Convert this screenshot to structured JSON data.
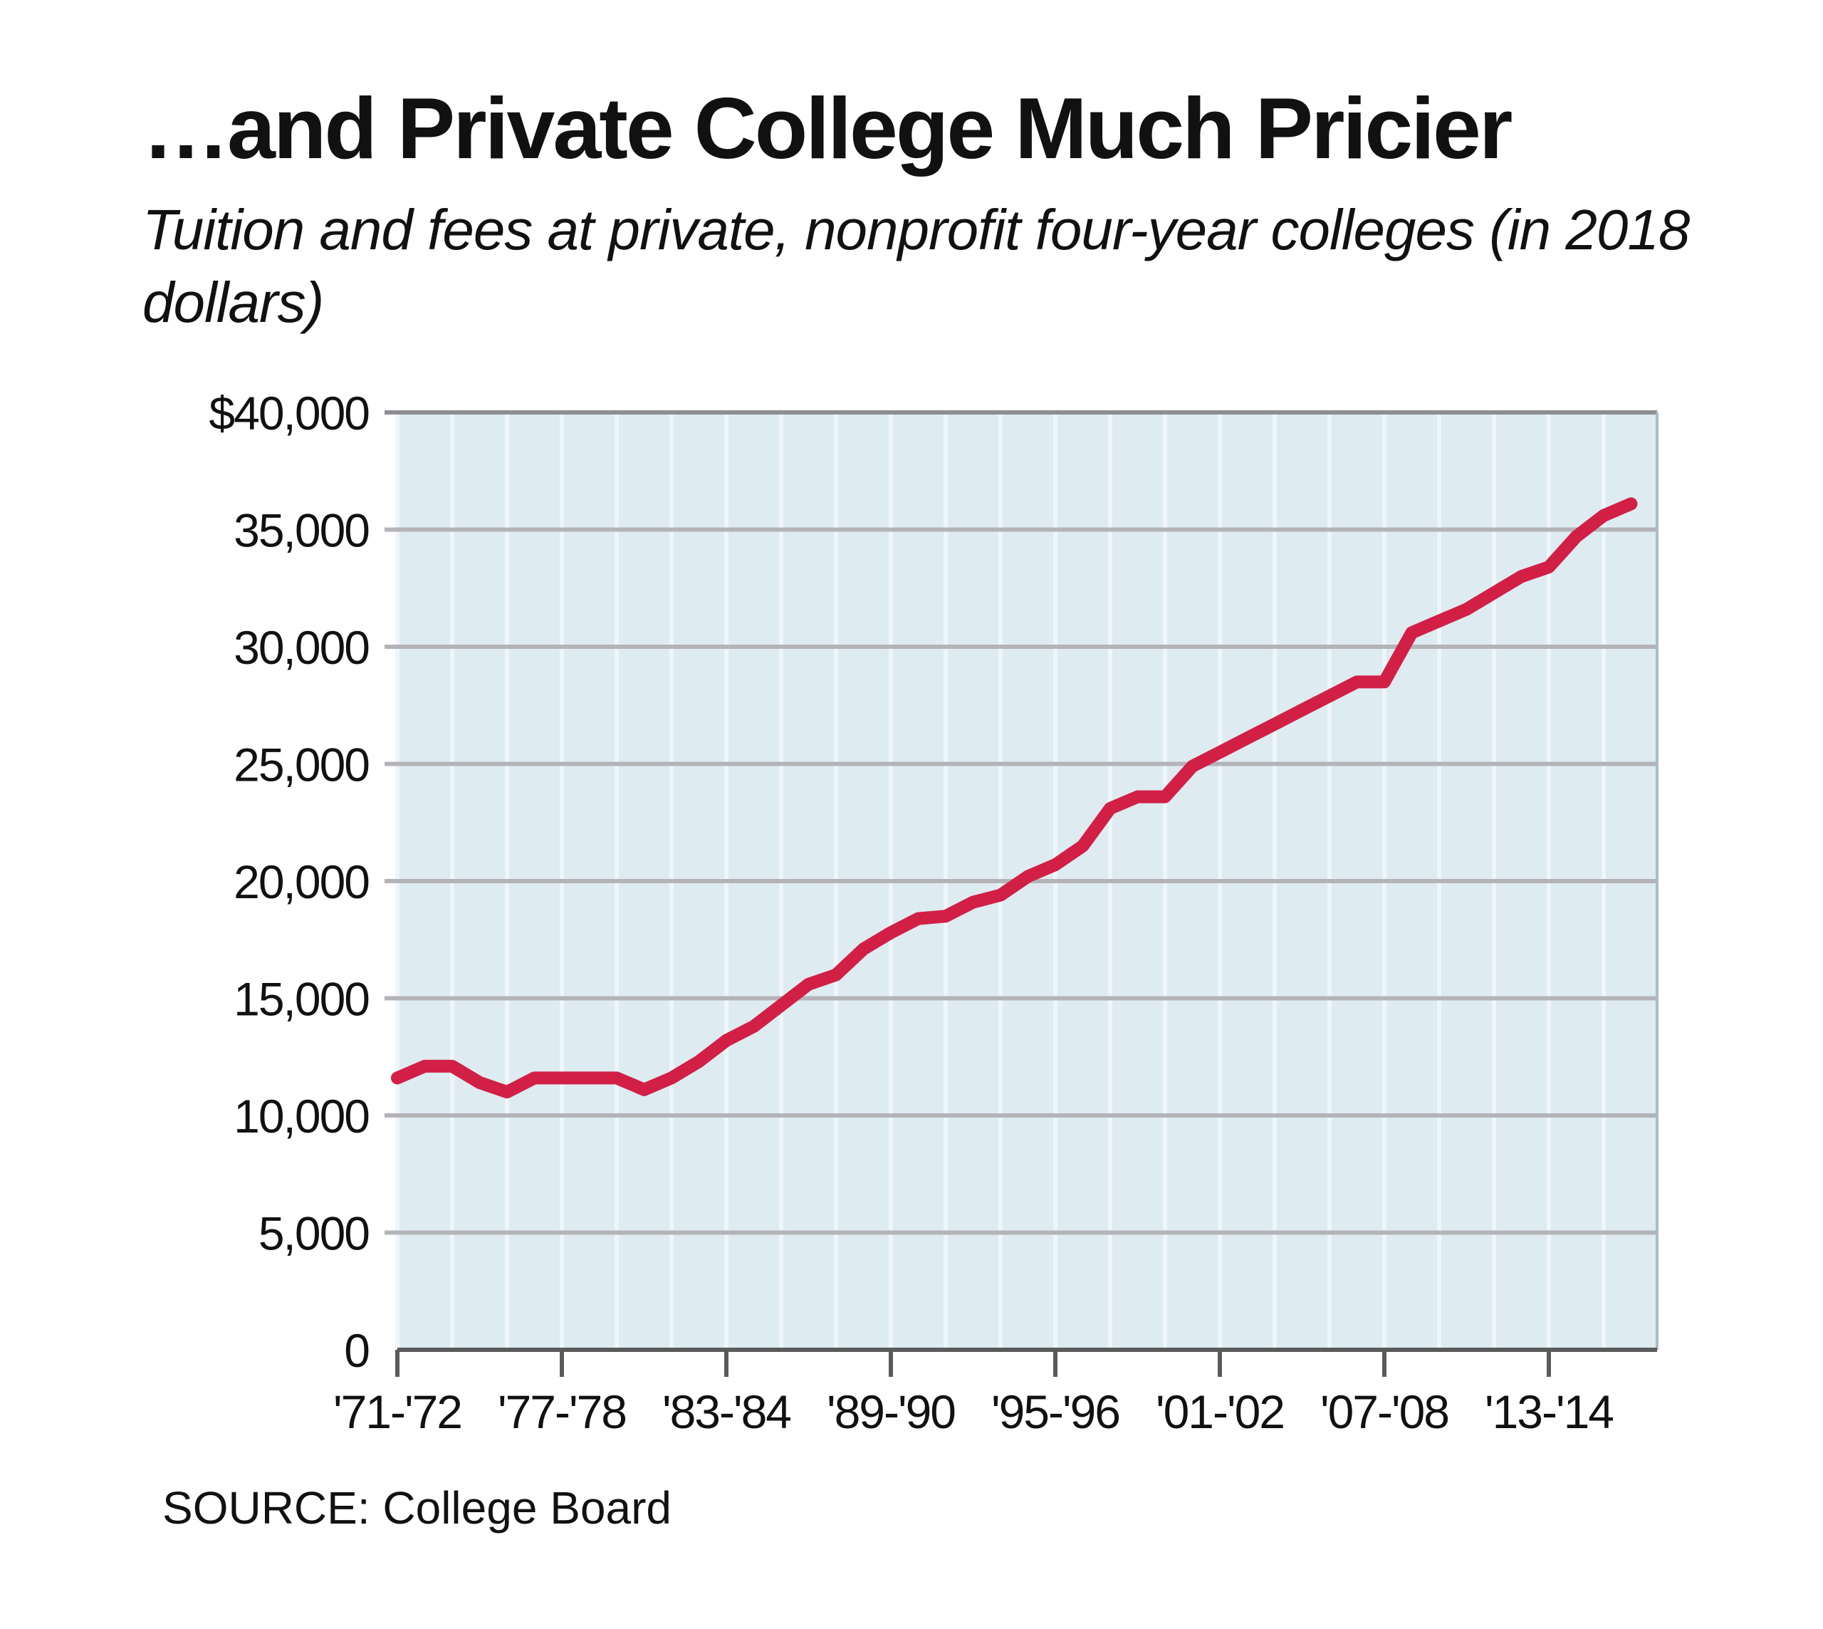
{
  "chart_data": {
    "type": "line",
    "title": "…and Private College Much Pricier",
    "subtitle": "Tuition and fees at private, nonprofit four-year colleges (in 2018 dollars)",
    "source": "SOURCE: College Board",
    "xlabel": "",
    "ylabel": "",
    "ylim": [
      0,
      40000
    ],
    "yticks": [
      0,
      5000,
      10000,
      15000,
      20000,
      25000,
      30000,
      35000,
      40000
    ],
    "ytick_labels": [
      "0",
      "5,000",
      "10,000",
      "15,000",
      "20,000",
      "25,000",
      "30,000",
      "35,000",
      "$40,000"
    ],
    "xtick_labels": [
      "'71-'72",
      "'77-'78",
      "'83-'84",
      "'89-'90",
      "'95-'96",
      "'01-'02",
      "'07-'08",
      "'13-'14"
    ],
    "x": [
      "'71-'72",
      "'72-'73",
      "'73-'74",
      "'74-'75",
      "'75-'76",
      "'76-'77",
      "'77-'78",
      "'78-'79",
      "'79-'80",
      "'80-'81",
      "'81-'82",
      "'82-'83",
      "'83-'84",
      "'84-'85",
      "'85-'86",
      "'86-'87",
      "'87-'88",
      "'88-'89",
      "'89-'90",
      "'90-'91",
      "'91-'92",
      "'92-'93",
      "'93-'94",
      "'94-'95",
      "'95-'96",
      "'96-'97",
      "'97-'98",
      "'98-'99",
      "'99-'00",
      "'00-'01",
      "'01-'02",
      "'02-'03",
      "'03-'04",
      "'04-'05",
      "'05-'06",
      "'06-'07",
      "'07-'08",
      "'08-'09",
      "'09-'10",
      "'10-'11",
      "'11-'12",
      "'12-'13",
      "'13-'14",
      "'14-'15",
      "'15-'16",
      "'16-'17"
    ],
    "series": [
      {
        "values": [
          11600,
          12100,
          12100,
          11400,
          11000,
          11600,
          11600,
          11600,
          11600,
          11100,
          11600,
          12300,
          13200,
          13800,
          14700,
          15600,
          16000,
          17100,
          17800,
          18400,
          18500,
          19100,
          19400,
          20200,
          20700,
          21500,
          23100,
          23600,
          23600,
          24900,
          25500,
          26100,
          26700,
          27300,
          27900,
          28500,
          28500,
          30600,
          31100,
          31600,
          32300,
          33000,
          33400,
          34700,
          35600,
          36100
        ]
      }
    ],
    "grid": true,
    "colors": {
      "line": "#d21f46",
      "plot_background": "#deebf1",
      "vertical_grid": "#eef6fa",
      "horizontal_grid": "#b4b4b8",
      "axis": "#5a5a5a"
    }
  }
}
